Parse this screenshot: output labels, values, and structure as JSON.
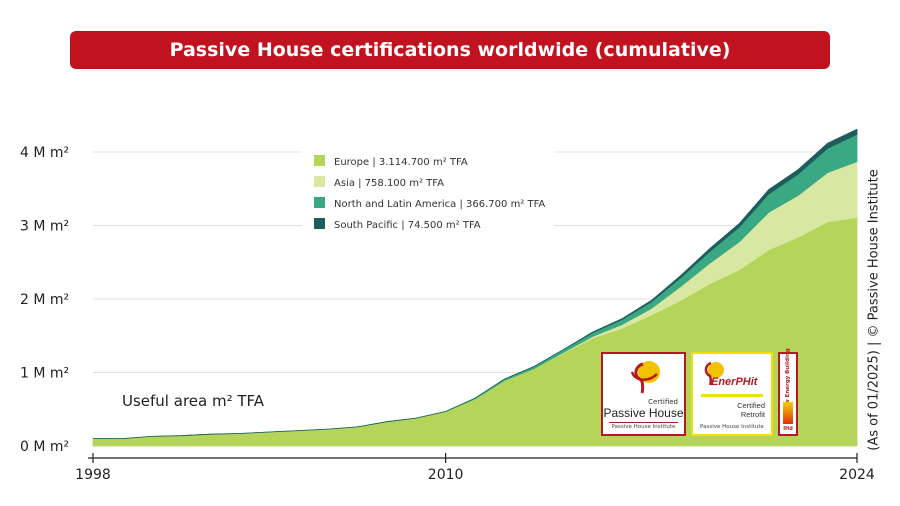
{
  "header": {
    "title": "Passive House certifications worldwide (cumulative)"
  },
  "credit": "(As of 01/2025) | © Passive House Institute",
  "badges": {
    "passive_house": {
      "small": "Certified",
      "big": "Passive House",
      "institute": "Passive House Institute"
    },
    "enerphit": {
      "word": "EnerPHit",
      "line1": "Certified",
      "line2": "Retrofit",
      "institute": "Passive House Institute"
    },
    "low_energy": {
      "vertical": "Low Energy Building",
      "mark": "IHd"
    }
  },
  "colors": {
    "title_bg": "#c0121f",
    "europe": "#b5d55a",
    "asia": "#d8e8a2",
    "north_latin_america": "#3aa883",
    "south_pacific": "#1e5d5c"
  },
  "chart_data": {
    "type": "area",
    "stacked": true,
    "annotation": "Useful area m² TFA",
    "x": [
      1998,
      1999,
      2000,
      2001,
      2002,
      2003,
      2004,
      2005,
      2006,
      2007,
      2008,
      2009,
      2010,
      2011,
      2012,
      2013,
      2014,
      2015,
      2016,
      2017,
      2018,
      2019,
      2020,
      2021,
      2022,
      2023,
      2024
    ],
    "xticks": [
      "1998",
      "2010",
      "2024"
    ],
    "xlim": [
      1998,
      2024
    ],
    "ylim": [
      0,
      4.3
    ],
    "yticks": [
      {
        "value": 0,
        "label": "0 M m²"
      },
      {
        "value": 1,
        "label": "1 M m²"
      },
      {
        "value": 2,
        "label": "2 M m²"
      },
      {
        "value": 3,
        "label": "3 M m²"
      },
      {
        "value": 4,
        "label": "4 M m²"
      }
    ],
    "grid": true,
    "legend_position": "top-center",
    "series": [
      {
        "name": "Europe | 3.114.700 m² TFA",
        "color": "#b5d55a",
        "values": [
          0.1,
          0.1,
          0.13,
          0.14,
          0.16,
          0.17,
          0.19,
          0.21,
          0.23,
          0.26,
          0.33,
          0.38,
          0.47,
          0.64,
          0.89,
          1.05,
          1.26,
          1.47,
          1.6,
          1.78,
          1.98,
          2.21,
          2.4,
          2.67,
          2.84,
          3.05,
          3.11
        ]
      },
      {
        "name": "Asia | 758.100 m² TFA",
        "color": "#d8e8a2",
        "values": [
          0,
          0,
          0,
          0,
          0,
          0,
          0,
          0,
          0,
          0,
          0,
          0,
          0,
          0,
          0,
          0,
          0.01,
          0.02,
          0.05,
          0.09,
          0.19,
          0.28,
          0.38,
          0.51,
          0.57,
          0.67,
          0.76
        ]
      },
      {
        "name": "North and Latin America | 366.700 m² TFA",
        "color": "#3aa883",
        "values": [
          0,
          0,
          0,
          0,
          0,
          0,
          0,
          0,
          0,
          0,
          0,
          0,
          0,
          0.01,
          0.02,
          0.03,
          0.04,
          0.05,
          0.07,
          0.09,
          0.12,
          0.16,
          0.2,
          0.25,
          0.29,
          0.33,
          0.37
        ]
      },
      {
        "name": "South Pacific | 74.500 m² TFA",
        "color": "#1e5d5c",
        "values": [
          0,
          0,
          0,
          0,
          0,
          0,
          0,
          0,
          0,
          0,
          0,
          0,
          0,
          0,
          0,
          0,
          0,
          0.01,
          0.01,
          0.02,
          0.03,
          0.04,
          0.05,
          0.06,
          0.06,
          0.07,
          0.07
        ]
      }
    ]
  }
}
